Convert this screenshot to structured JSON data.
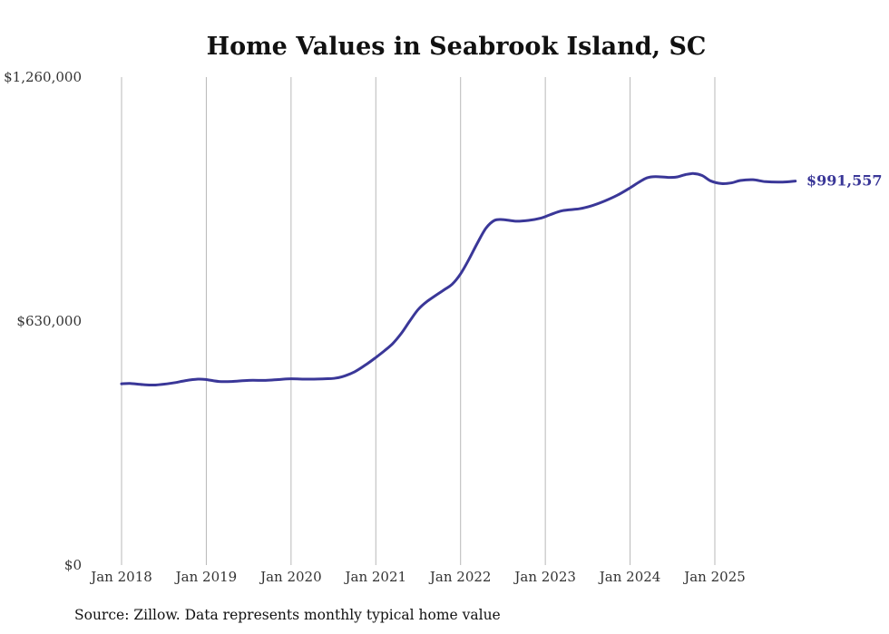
{
  "chart_data": {
    "type": "line",
    "title": "Home Values in Seabrook Island, SC",
    "xlabel": "",
    "ylabel": "",
    "ylim": [
      0,
      1260000
    ],
    "y_ticks": [
      {
        "value": 0,
        "label": "$0"
      },
      {
        "value": 630000,
        "label": "$630,000"
      },
      {
        "value": 1260000,
        "label": "$1,260,000"
      }
    ],
    "x_ticks": [
      {
        "value": 2018.0,
        "label": "Jan 2018"
      },
      {
        "value": 2019.0,
        "label": "Jan 2019"
      },
      {
        "value": 2020.0,
        "label": "Jan 2020"
      },
      {
        "value": 2021.0,
        "label": "Jan 2021"
      },
      {
        "value": 2022.0,
        "label": "Jan 2022"
      },
      {
        "value": 2023.0,
        "label": "Jan 2023"
      },
      {
        "value": 2024.0,
        "label": "Jan 2024"
      },
      {
        "value": 2025.0,
        "label": "Jan 2025"
      }
    ],
    "xlim": [
      2017.7,
      2026.45
    ],
    "grid": "vertical",
    "line_color": "#3a3798",
    "series": [
      {
        "values": [
          [
            2018.0,
            468000
          ],
          [
            2018.1,
            469000
          ],
          [
            2018.25,
            466000
          ],
          [
            2018.4,
            465000
          ],
          [
            2018.6,
            470000
          ],
          [
            2018.75,
            476000
          ],
          [
            2018.9,
            480000
          ],
          [
            2019.0,
            479000
          ],
          [
            2019.15,
            474000
          ],
          [
            2019.3,
            474000
          ],
          [
            2019.5,
            477000
          ],
          [
            2019.7,
            477000
          ],
          [
            2019.85,
            479000
          ],
          [
            2020.0,
            481000
          ],
          [
            2020.2,
            480000
          ],
          [
            2020.4,
            481000
          ],
          [
            2020.5,
            482000
          ],
          [
            2020.6,
            486000
          ],
          [
            2020.75,
            499000
          ],
          [
            2020.9,
            520000
          ],
          [
            2021.0,
            536000
          ],
          [
            2021.1,
            553000
          ],
          [
            2021.2,
            572000
          ],
          [
            2021.3,
            598000
          ],
          [
            2021.4,
            630000
          ],
          [
            2021.5,
            660000
          ],
          [
            2021.6,
            680000
          ],
          [
            2021.8,
            710000
          ],
          [
            2021.9,
            725000
          ],
          [
            2022.0,
            752000
          ],
          [
            2022.1,
            790000
          ],
          [
            2022.2,
            832000
          ],
          [
            2022.3,
            870000
          ],
          [
            2022.4,
            890000
          ],
          [
            2022.5,
            892000
          ],
          [
            2022.65,
            888000
          ],
          [
            2022.8,
            890000
          ],
          [
            2022.95,
            896000
          ],
          [
            2023.05,
            904000
          ],
          [
            2023.2,
            915000
          ],
          [
            2023.4,
            920000
          ],
          [
            2023.55,
            928000
          ],
          [
            2023.7,
            940000
          ],
          [
            2023.85,
            955000
          ],
          [
            2024.0,
            974000
          ],
          [
            2024.1,
            988000
          ],
          [
            2024.2,
            1000000
          ],
          [
            2024.3,
            1003000
          ],
          [
            2024.45,
            1001000
          ],
          [
            2024.55,
            1002000
          ],
          [
            2024.65,
            1008000
          ],
          [
            2024.75,
            1011000
          ],
          [
            2024.85,
            1006000
          ],
          [
            2024.95,
            992000
          ],
          [
            2025.08,
            985000
          ],
          [
            2025.2,
            987000
          ],
          [
            2025.3,
            993000
          ],
          [
            2025.45,
            995000
          ],
          [
            2025.6,
            990000
          ],
          [
            2025.8,
            989000
          ],
          [
            2025.95,
            991557
          ]
        ]
      }
    ],
    "end_value_label": "$991,557"
  },
  "footer": {
    "source": "Source: Zillow. Data represents monthly typical home value"
  }
}
